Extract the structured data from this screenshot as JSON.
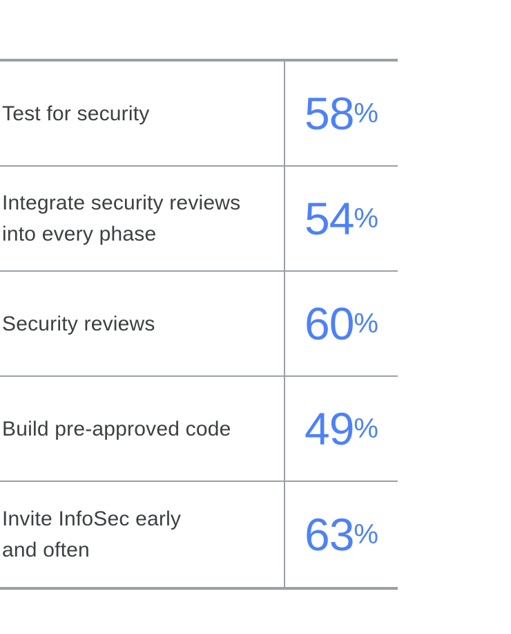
{
  "table": {
    "rows": [
      {
        "label": "Test for security",
        "value": "58",
        "unit": "%"
      },
      {
        "label": "Integrate security reviews\ninto every phase",
        "value": "54",
        "unit": "%"
      },
      {
        "label": "Security reviews",
        "value": "60",
        "unit": "%"
      },
      {
        "label": "Build pre-approved code",
        "value": "49",
        "unit": "%"
      },
      {
        "label": "Invite InfoSec early\nand often",
        "value": "63",
        "unit": "%"
      }
    ],
    "colors": {
      "accent_blue": "#4d82f6",
      "label_text": "#3c4043",
      "rule_gray": "#9aa0a6",
      "background": "#ffffff"
    }
  },
  "chart_data": {
    "type": "table",
    "categories": [
      "Test for security",
      "Integrate security reviews into every phase",
      "Security reviews",
      "Build pre-approved code",
      "Invite InfoSec early and often"
    ],
    "values": [
      58,
      54,
      60,
      49,
      63
    ],
    "unit": "%",
    "layout": "two-column table, labels left, large blue percentages right, gray horizontal rules and continuous vertical divider"
  }
}
